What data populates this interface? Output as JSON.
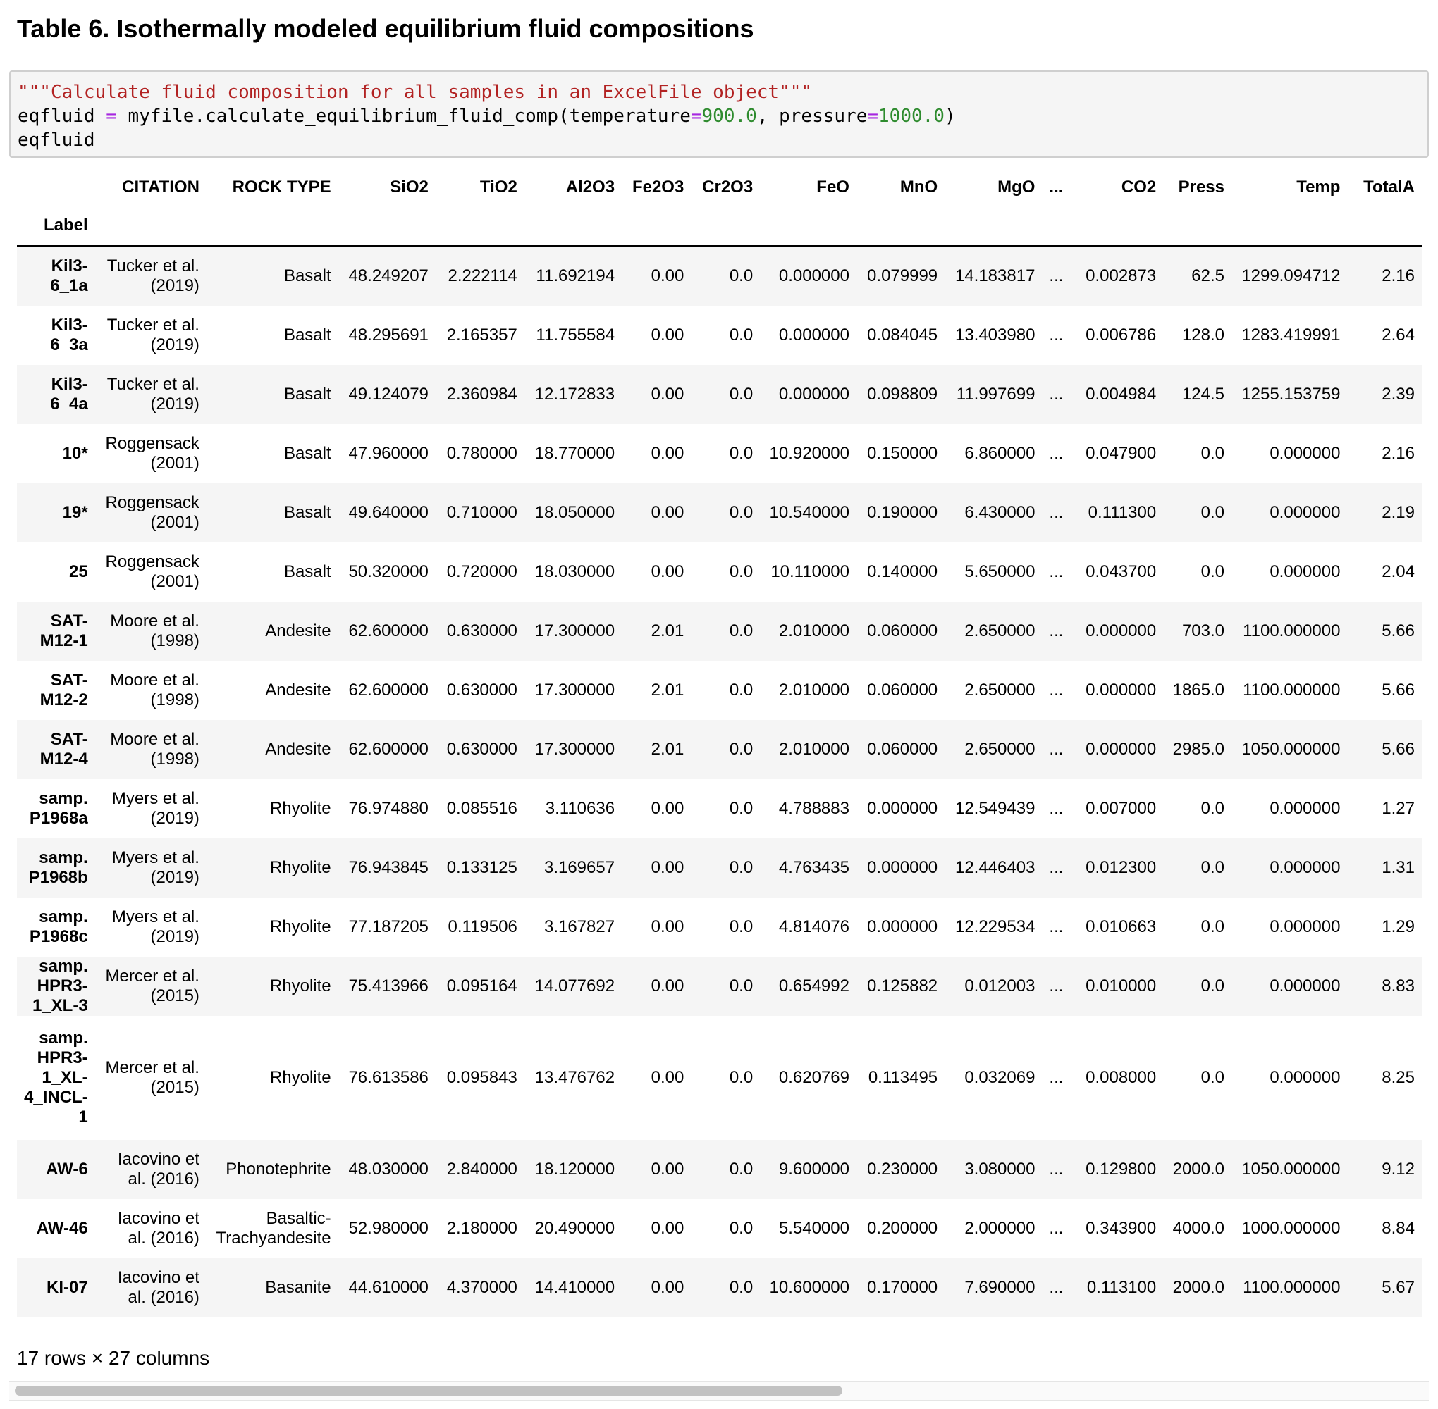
{
  "title": "Table 6. Isothermally modeled equilibrium fluid compositions",
  "code": {
    "line1": "\"\"\"Calculate fluid composition for all samples in an ExcelFile object\"\"\"",
    "line2_a": "eqfluid ",
    "line2_op1": "=",
    "line2_b": " myfile.calculate_equilibrium_fluid_comp(temperature",
    "line2_op2": "=",
    "line2_num1": "900.0",
    "line2_c": ", pressure",
    "line2_op3": "=",
    "line2_num2": "1000.0",
    "line2_d": ")",
    "line3": "eqfluid"
  },
  "table": {
    "index_name": "Label",
    "columns": [
      "CITATION",
      "ROCK TYPE",
      "SiO2",
      "TiO2",
      "Al2O3",
      "Fe2O3",
      "Cr2O3",
      "FeO",
      "MnO",
      "MgO",
      "...",
      "CO2",
      "Press",
      "Temp",
      "TotalA"
    ],
    "rows": [
      {
        "label": "Kil3-6_1a",
        "cells": [
          "Tucker et al. (2019)",
          "Basalt",
          "48.249207",
          "2.222114",
          "11.692194",
          "0.00",
          "0.0",
          "0.000000",
          "0.079999",
          "14.183817",
          "...",
          "0.002873",
          "62.5",
          "1299.094712",
          "2.16"
        ]
      },
      {
        "label": "Kil3-6_3a",
        "cells": [
          "Tucker et al. (2019)",
          "Basalt",
          "48.295691",
          "2.165357",
          "11.755584",
          "0.00",
          "0.0",
          "0.000000",
          "0.084045",
          "13.403980",
          "...",
          "0.006786",
          "128.0",
          "1283.419991",
          "2.64"
        ]
      },
      {
        "label": "Kil3-6_4a",
        "cells": [
          "Tucker et al. (2019)",
          "Basalt",
          "49.124079",
          "2.360984",
          "12.172833",
          "0.00",
          "0.0",
          "0.000000",
          "0.098809",
          "11.997699",
          "...",
          "0.004984",
          "124.5",
          "1255.153759",
          "2.39"
        ]
      },
      {
        "label": "10*",
        "cells": [
          "Roggensack (2001)",
          "Basalt",
          "47.960000",
          "0.780000",
          "18.770000",
          "0.00",
          "0.0",
          "10.920000",
          "0.150000",
          "6.860000",
          "...",
          "0.047900",
          "0.0",
          "0.000000",
          "2.16"
        ]
      },
      {
        "label": "19*",
        "cells": [
          "Roggensack (2001)",
          "Basalt",
          "49.640000",
          "0.710000",
          "18.050000",
          "0.00",
          "0.0",
          "10.540000",
          "0.190000",
          "6.430000",
          "...",
          "0.111300",
          "0.0",
          "0.000000",
          "2.19"
        ]
      },
      {
        "label": "25",
        "cells": [
          "Roggensack (2001)",
          "Basalt",
          "50.320000",
          "0.720000",
          "18.030000",
          "0.00",
          "0.0",
          "10.110000",
          "0.140000",
          "5.650000",
          "...",
          "0.043700",
          "0.0",
          "0.000000",
          "2.04"
        ]
      },
      {
        "label": "SAT-M12-1",
        "cells": [
          "Moore et al. (1998)",
          "Andesite",
          "62.600000",
          "0.630000",
          "17.300000",
          "2.01",
          "0.0",
          "2.010000",
          "0.060000",
          "2.650000",
          "...",
          "0.000000",
          "703.0",
          "1100.000000",
          "5.66"
        ]
      },
      {
        "label": "SAT-M12-2",
        "cells": [
          "Moore et al. (1998)",
          "Andesite",
          "62.600000",
          "0.630000",
          "17.300000",
          "2.01",
          "0.0",
          "2.010000",
          "0.060000",
          "2.650000",
          "...",
          "0.000000",
          "1865.0",
          "1100.000000",
          "5.66"
        ]
      },
      {
        "label": "SAT-M12-4",
        "cells": [
          "Moore et al. (1998)",
          "Andesite",
          "62.600000",
          "0.630000",
          "17.300000",
          "2.01",
          "0.0",
          "2.010000",
          "0.060000",
          "2.650000",
          "...",
          "0.000000",
          "2985.0",
          "1050.000000",
          "5.66"
        ]
      },
      {
        "label": "samp. P1968a",
        "cells": [
          "Myers et al. (2019)",
          "Rhyolite",
          "76.974880",
          "0.085516",
          "3.110636",
          "0.00",
          "0.0",
          "4.788883",
          "0.000000",
          "12.549439",
          "...",
          "0.007000",
          "0.0",
          "0.000000",
          "1.27"
        ]
      },
      {
        "label": "samp. P1968b",
        "cells": [
          "Myers et al. (2019)",
          "Rhyolite",
          "76.943845",
          "0.133125",
          "3.169657",
          "0.00",
          "0.0",
          "4.763435",
          "0.000000",
          "12.446403",
          "...",
          "0.012300",
          "0.0",
          "0.000000",
          "1.31"
        ]
      },
      {
        "label": "samp. P1968c",
        "cells": [
          "Myers et al. (2019)",
          "Rhyolite",
          "77.187205",
          "0.119506",
          "3.167827",
          "0.00",
          "0.0",
          "4.814076",
          "0.000000",
          "12.229534",
          "...",
          "0.010663",
          "0.0",
          "0.000000",
          "1.29"
        ]
      },
      {
        "label": "samp. HPR3-1_XL-3",
        "cells": [
          "Mercer et al. (2015)",
          "Rhyolite",
          "75.413966",
          "0.095164",
          "14.077692",
          "0.00",
          "0.0",
          "0.654992",
          "0.125882",
          "0.012003",
          "...",
          "0.010000",
          "0.0",
          "0.000000",
          "8.83"
        ]
      },
      {
        "label": "samp. HPR3-1_XL-4_INCL-1",
        "cells": [
          "Mercer et al. (2015)",
          "Rhyolite",
          "76.613586",
          "0.095843",
          "13.476762",
          "0.00",
          "0.0",
          "0.620769",
          "0.113495",
          "0.032069",
          "...",
          "0.008000",
          "0.0",
          "0.000000",
          "8.25"
        ]
      },
      {
        "label": "AW-6",
        "cells": [
          "Iacovino et al. (2016)",
          "Phonotephrite",
          "48.030000",
          "2.840000",
          "18.120000",
          "0.00",
          "0.0",
          "9.600000",
          "0.230000",
          "3.080000",
          "...",
          "0.129800",
          "2000.0",
          "1050.000000",
          "9.12"
        ]
      },
      {
        "label": "AW-46",
        "cells": [
          "Iacovino et al. (2016)",
          "Basaltic-Trachyandesite",
          "52.980000",
          "2.180000",
          "20.490000",
          "0.00",
          "0.0",
          "5.540000",
          "0.200000",
          "2.000000",
          "...",
          "0.343900",
          "4000.0",
          "1000.000000",
          "8.84"
        ]
      },
      {
        "label": "KI-07",
        "cells": [
          "Iacovino et al. (2016)",
          "Basanite",
          "44.610000",
          "4.370000",
          "14.410000",
          "0.00",
          "0.0",
          "10.600000",
          "0.170000",
          "7.690000",
          "...",
          "0.113100",
          "2000.0",
          "1100.000000",
          "5.67"
        ]
      }
    ]
  },
  "footer": "17 rows × 27 columns"
}
